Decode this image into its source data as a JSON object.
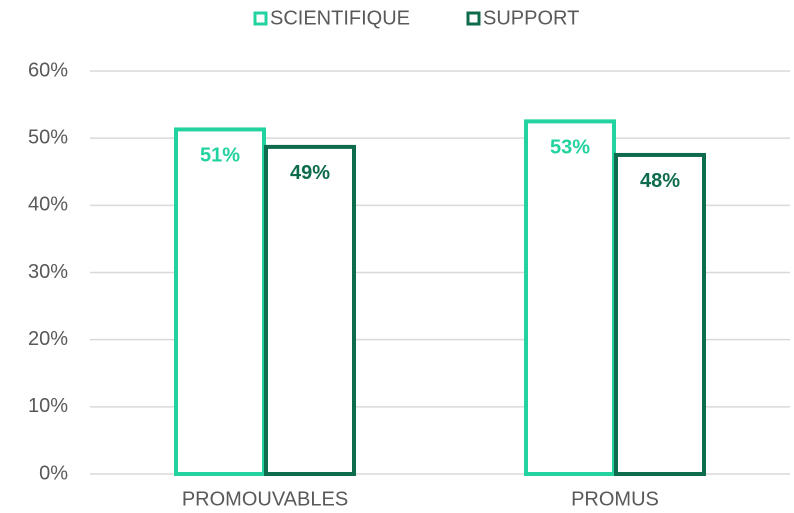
{
  "chart_data": {
    "type": "bar",
    "categories": [
      "PROMOUVABLES",
      "PROMUS"
    ],
    "series": [
      {
        "name": "SCIENTIFIQUE",
        "color": "#22d3a0",
        "values": [
          51.3,
          52.5
        ],
        "value_labels": [
          "51%",
          "53%"
        ]
      },
      {
        "name": "SUPPORT",
        "color": "#0e6b4e",
        "values": [
          48.7,
          47.5
        ],
        "value_labels": [
          "49%",
          "48%"
        ]
      }
    ],
    "ylim": [
      0,
      60
    ],
    "yticks": [
      {
        "value": 0,
        "label": "0%"
      },
      {
        "value": 10,
        "label": "10%"
      },
      {
        "value": 20,
        "label": "20%"
      },
      {
        "value": 30,
        "label": "30%"
      },
      {
        "value": 40,
        "label": "40%"
      },
      {
        "value": 50,
        "label": "50%"
      },
      {
        "value": 60,
        "label": "60%"
      }
    ],
    "grid": true,
    "legend": "top"
  }
}
